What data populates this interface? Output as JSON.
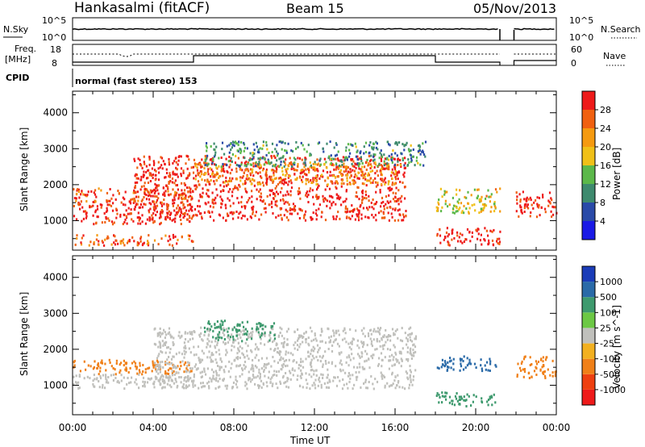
{
  "header": {
    "site": "Hankasalmi (fitACF)",
    "beam": "Beam 15",
    "date": "05/Nov/2013"
  },
  "status_panels": {
    "nsky_label": "N.Sky",
    "nsearch_label": "N.Search",
    "noise_ticks": [
      "10^5",
      "10^0"
    ],
    "freq_label_1": "Freq.",
    "freq_label_2": "[MHz]",
    "freq_ticks": [
      "18",
      "8"
    ],
    "nave_label": "Nave",
    "nave_ticks": [
      "60",
      "0"
    ],
    "cpid_label": "CPID",
    "cpid_value": "normal (fast stereo) 153"
  },
  "colors": {
    "power_scale": [
      "#1a1ae6",
      "#2a4aa8",
      "#3e8a6e",
      "#5cb84a",
      "#f0c018",
      "#f59a10",
      "#f06010",
      "#ee1a1a"
    ],
    "velocity_scale": [
      "#1a3cb8",
      "#2a6aa8",
      "#3e9a6e",
      "#6cc844",
      "#c0c0bc",
      "#f2b020",
      "#f08018",
      "#ee4010",
      "#ee1a1a"
    ],
    "ground_scatter": "#c0c0bc"
  },
  "chart_data": [
    {
      "type": "heatmap",
      "panel": "power",
      "ylabel": "Slant Range [km]",
      "ylim": [
        180,
        4600
      ],
      "xlim": [
        "00:00",
        "24:00"
      ],
      "yticks": [
        "1000",
        "2000",
        "3000",
        "4000"
      ],
      "colorbar_label": "Power [dB]",
      "colorbar_ticks": [
        "4",
        "8",
        "12",
        "16",
        "20",
        "24",
        "28"
      ],
      "bands": [
        {
          "t": [
            0,
            6
          ],
          "r": [
            900,
            1500
          ],
          "level": 28
        },
        {
          "t": [
            0,
            6
          ],
          "r": [
            1500,
            1900
          ],
          "level": 24
        },
        {
          "t": [
            3,
            16.5
          ],
          "r": [
            1000,
            2800
          ],
          "level": 28
        },
        {
          "t": [
            6,
            16
          ],
          "r": [
            2000,
            2600
          ],
          "level": 20
        },
        {
          "t": [
            6.5,
            17.5
          ],
          "r": [
            2500,
            3200
          ],
          "level": 8
        },
        {
          "t": [
            18,
            21.2
          ],
          "r": [
            300,
            800
          ],
          "level": 28
        },
        {
          "t": [
            18,
            21.2
          ],
          "r": [
            1200,
            1900
          ],
          "level": 16
        },
        {
          "t": [
            21.9,
            24
          ],
          "r": [
            1100,
            1800
          ],
          "level": 28
        },
        {
          "t": [
            0,
            6
          ],
          "r": [
            300,
            600
          ],
          "level": 24
        }
      ]
    },
    {
      "type": "heatmap",
      "panel": "velocity",
      "ylabel": "Slant Range [km]",
      "xlabel": "Time UT",
      "ylim": [
        180,
        4600
      ],
      "xlim": [
        "00:00",
        "24:00"
      ],
      "xticks": [
        "00:00",
        "04:00",
        "08:00",
        "12:00",
        "16:00",
        "20:00",
        "00:00"
      ],
      "yticks": [
        "1000",
        "2000",
        "3000",
        "4000"
      ],
      "colorbar_label": "Velocity [m s^-1]",
      "colorbar_ticks": [
        "1000",
        "500",
        "100",
        "25",
        "-25",
        "-100",
        "-500",
        "-1000"
      ],
      "bands": [
        {
          "t": [
            0,
            6
          ],
          "r": [
            1300,
            1700
          ],
          "level": -100
        },
        {
          "t": [
            0,
            6
          ],
          "r": [
            900,
            1300
          ],
          "level": 0
        },
        {
          "t": [
            4,
            17
          ],
          "r": [
            900,
            2600
          ],
          "level": 0
        },
        {
          "t": [
            6.5,
            10
          ],
          "r": [
            2200,
            2800
          ],
          "level": 100
        },
        {
          "t": [
            18,
            21
          ],
          "r": [
            400,
            800
          ],
          "level": 100
        },
        {
          "t": [
            18,
            21
          ],
          "r": [
            1400,
            1800
          ],
          "level": 500
        },
        {
          "t": [
            21.9,
            24
          ],
          "r": [
            1200,
            1800
          ],
          "level": -100
        }
      ]
    }
  ]
}
